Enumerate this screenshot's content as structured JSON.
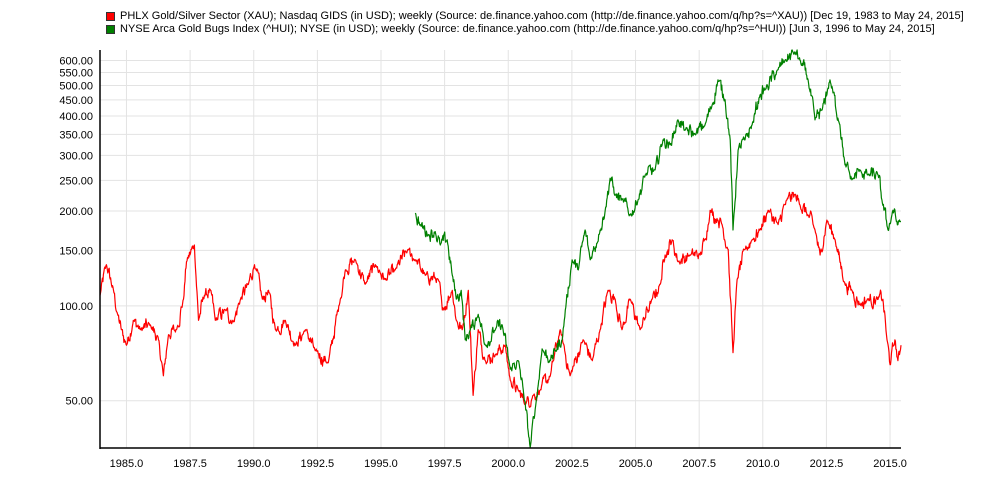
{
  "chart_data": {
    "type": "line",
    "title": "",
    "xlabel": "",
    "ylabel": "",
    "y_scale": "log",
    "xlim": [
      1983.96,
      2015.43
    ],
    "ylim": [
      35.4,
      648
    ],
    "grid": true,
    "legend_position": "top",
    "x_ticks": [
      "1985.0",
      "1987.5",
      "1990.0",
      "1992.5",
      "1995.0",
      "1997.5",
      "2000.0",
      "2002.5",
      "2005.0",
      "2007.5",
      "2010.0",
      "2012.5",
      "2015.0"
    ],
    "y_ticks": [
      "50.00",
      "100.00",
      "150.00",
      "200.00",
      "250.00",
      "300.00",
      "350.00",
      "400.00",
      "450.00",
      "500.00",
      "550.00",
      "600.00"
    ],
    "series": [
      {
        "name": "PHLX Gold/Silver Sector (XAU); Nasdaq GIDS (in USD); weekly (Source: de.finance.yahoo.com (http://de.finance.yahoo.com/q/hp?s=^XAU)) [Dec 19, 1983 to May 24, 2015]",
        "color": "#ff0000",
        "points": [
          [
            1983.96,
            108
          ],
          [
            1984.21,
            135
          ],
          [
            1984.49,
            112
          ],
          [
            1984.65,
            94
          ],
          [
            1984.8,
            84
          ],
          [
            1985.0,
            75
          ],
          [
            1985.27,
            90
          ],
          [
            1985.55,
            84
          ],
          [
            1985.94,
            87
          ],
          [
            1986.26,
            78
          ],
          [
            1986.45,
            60
          ],
          [
            1986.65,
            81
          ],
          [
            1986.96,
            84
          ],
          [
            1987.24,
            105
          ],
          [
            1987.36,
            138
          ],
          [
            1987.67,
            156
          ],
          [
            1987.83,
            90
          ],
          [
            1988.06,
            108
          ],
          [
            1988.3,
            112
          ],
          [
            1988.49,
            90
          ],
          [
            1988.89,
            97
          ],
          [
            1989.2,
            89
          ],
          [
            1989.48,
            105
          ],
          [
            1989.79,
            117
          ],
          [
            1990.03,
            135
          ],
          [
            1990.34,
            105
          ],
          [
            1990.58,
            112
          ],
          [
            1990.85,
            84
          ],
          [
            1991.24,
            90
          ],
          [
            1991.64,
            75
          ],
          [
            1992.03,
            84
          ],
          [
            1992.42,
            72
          ],
          [
            1992.93,
            66
          ],
          [
            1993.4,
            105
          ],
          [
            1993.6,
            130
          ],
          [
            1993.99,
            140
          ],
          [
            1994.38,
            117
          ],
          [
            1994.78,
            135
          ],
          [
            1995.17,
            121
          ],
          [
            1995.56,
            130
          ],
          [
            1996.07,
            151
          ],
          [
            1996.35,
            140
          ],
          [
            1996.74,
            125
          ],
          [
            1997.25,
            121
          ],
          [
            1997.41,
            97
          ],
          [
            1997.8,
            112
          ],
          [
            1997.96,
            90
          ],
          [
            1998.19,
            84
          ],
          [
            1998.43,
            112
          ],
          [
            1998.62,
            52
          ],
          [
            1998.82,
            84
          ],
          [
            1999.1,
            67
          ],
          [
            1999.49,
            70
          ],
          [
            1999.88,
            75
          ],
          [
            2000.08,
            58
          ],
          [
            2000.39,
            54
          ],
          [
            2000.67,
            49
          ],
          [
            2000.98,
            52
          ],
          [
            2001.25,
            54
          ],
          [
            2001.65,
            60
          ],
          [
            2002.04,
            84
          ],
          [
            2002.43,
            60
          ],
          [
            2002.94,
            78
          ],
          [
            2003.3,
            67
          ],
          [
            2003.61,
            84
          ],
          [
            2003.92,
            112
          ],
          [
            2004.2,
            105
          ],
          [
            2004.47,
            84
          ],
          [
            2004.79,
            105
          ],
          [
            2005.18,
            84
          ],
          [
            2005.65,
            105
          ],
          [
            2005.97,
            117
          ],
          [
            2006.16,
            145
          ],
          [
            2006.44,
            162
          ],
          [
            2006.67,
            138
          ],
          [
            2007.14,
            145
          ],
          [
            2007.54,
            145
          ],
          [
            2007.73,
            162
          ],
          [
            2007.93,
            201
          ],
          [
            2008.24,
            187
          ],
          [
            2008.4,
            181
          ],
          [
            2008.64,
            151
          ],
          [
            2008.83,
            71
          ],
          [
            2008.99,
            121
          ],
          [
            2009.3,
            151
          ],
          [
            2009.58,
            162
          ],
          [
            2009.89,
            174
          ],
          [
            2010.21,
            201
          ],
          [
            2010.6,
            181
          ],
          [
            2010.95,
            217
          ],
          [
            2011.27,
            225
          ],
          [
            2011.46,
            209
          ],
          [
            2011.78,
            194
          ],
          [
            2012.05,
            174
          ],
          [
            2012.25,
            145
          ],
          [
            2012.52,
            187
          ],
          [
            2012.84,
            162
          ],
          [
            2013.23,
            117
          ],
          [
            2013.5,
            112
          ],
          [
            2013.82,
            101
          ],
          [
            2014.13,
            105
          ],
          [
            2014.53,
            105
          ],
          [
            2014.72,
            105
          ],
          [
            2014.88,
            78
          ],
          [
            2015.0,
            65
          ],
          [
            2015.19,
            78
          ],
          [
            2015.31,
            67
          ],
          [
            2015.43,
            75
          ]
        ]
      },
      {
        "name": "NYSE Arca Gold Bugs Index (^HUI); NYSE (in USD); weekly (Source: de.finance.yahoo.com (http://de.finance.yahoo.com/q/hp?s=^HUI)) [Jun 3, 1996 to May 24, 2015]",
        "color": "#008000",
        "points": [
          [
            1996.35,
            197
          ],
          [
            1996.54,
            181
          ],
          [
            1996.86,
            168
          ],
          [
            1997.13,
            172
          ],
          [
            1997.33,
            156
          ],
          [
            1997.6,
            162
          ],
          [
            1997.8,
            125
          ],
          [
            1997.96,
            105
          ],
          [
            1998.15,
            112
          ],
          [
            1998.31,
            78
          ],
          [
            1998.51,
            84
          ],
          [
            1998.82,
            94
          ],
          [
            1999.1,
            75
          ],
          [
            1999.49,
            84
          ],
          [
            1999.76,
            87
          ],
          [
            2000.08,
            63
          ],
          [
            2000.39,
            67
          ],
          [
            2000.59,
            54
          ],
          [
            2000.86,
            35.5
          ],
          [
            2001.06,
            47
          ],
          [
            2001.33,
            73
          ],
          [
            2001.65,
            67
          ],
          [
            2001.84,
            72
          ],
          [
            2002.12,
            78
          ],
          [
            2002.24,
            97
          ],
          [
            2002.51,
            140
          ],
          [
            2002.75,
            130
          ],
          [
            2003.02,
            174
          ],
          [
            2003.22,
            140
          ],
          [
            2003.61,
            174
          ],
          [
            2003.81,
            201
          ],
          [
            2004.0,
            254
          ],
          [
            2004.2,
            225
          ],
          [
            2004.47,
            217
          ],
          [
            2004.79,
            194
          ],
          [
            2005.1,
            217
          ],
          [
            2005.38,
            260
          ],
          [
            2005.77,
            270
          ],
          [
            2006.08,
            336
          ],
          [
            2006.36,
            324
          ],
          [
            2006.67,
            389
          ],
          [
            2006.95,
            361
          ],
          [
            2007.34,
            350
          ],
          [
            2007.73,
            375
          ],
          [
            2008.01,
            433
          ],
          [
            2008.24,
            521
          ],
          [
            2008.52,
            450
          ],
          [
            2008.72,
            336
          ],
          [
            2008.83,
            174
          ],
          [
            2009.03,
            312
          ],
          [
            2009.3,
            336
          ],
          [
            2009.58,
            375
          ],
          [
            2009.89,
            466
          ],
          [
            2010.09,
            484
          ],
          [
            2010.6,
            561
          ],
          [
            2010.87,
            601
          ],
          [
            2011.27,
            638
          ],
          [
            2011.46,
            601
          ],
          [
            2011.78,
            521
          ],
          [
            2012.05,
            389
          ],
          [
            2012.33,
            418
          ],
          [
            2012.64,
            521
          ],
          [
            2013.03,
            375
          ],
          [
            2013.23,
            280
          ],
          [
            2013.5,
            251
          ],
          [
            2013.82,
            270
          ],
          [
            2014.13,
            260
          ],
          [
            2014.53,
            260
          ],
          [
            2014.68,
            217
          ],
          [
            2014.92,
            174
          ],
          [
            2015.11,
            201
          ],
          [
            2015.31,
            181
          ],
          [
            2015.43,
            185
          ]
        ]
      }
    ]
  }
}
